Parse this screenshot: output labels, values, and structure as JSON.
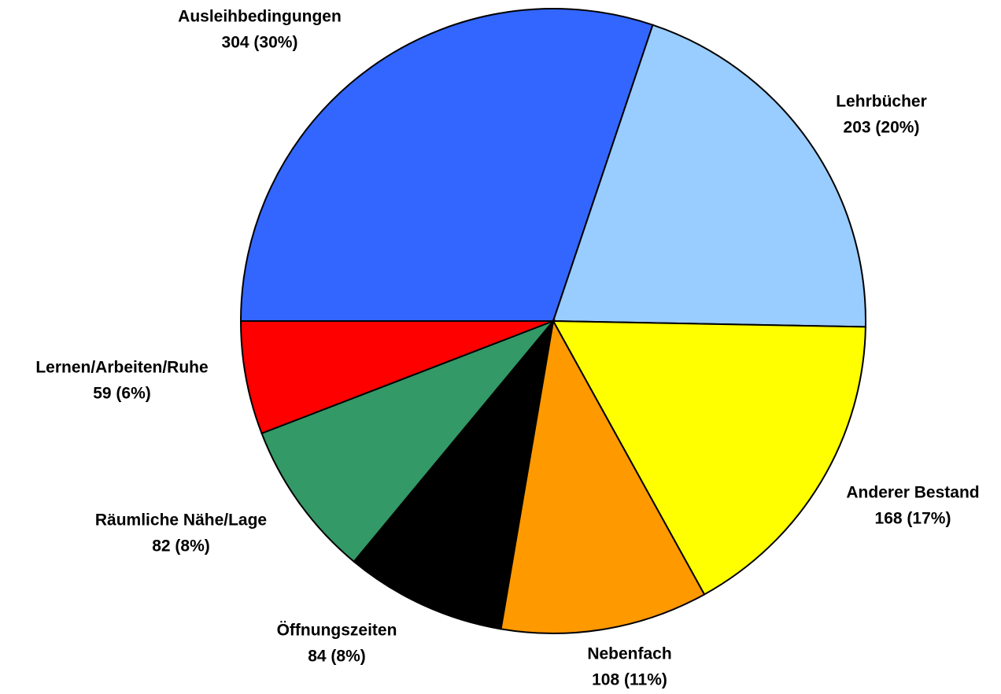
{
  "chart_data": {
    "type": "pie",
    "categories": [
      "Ausleihbedingungen",
      "Lehrbücher",
      "Anderer Bestand",
      "Nebenfach",
      "Öffnungszeiten",
      "Räumliche Nähe/Lage",
      "Lernen/Arbeiten/Ruhe"
    ],
    "values": [
      304,
      203,
      168,
      108,
      84,
      82,
      59
    ],
    "value_labels": [
      "304 (30%)",
      "203 (20%)",
      "168 (17%)",
      "108 (11%)",
      "84 (8%)",
      "82 (8%)",
      "59 (6%)"
    ],
    "colors": [
      "#3366ff",
      "#99ccff",
      "#ffff00",
      "#ff9900",
      "#000000",
      "#339966",
      "#ff0000"
    ]
  }
}
